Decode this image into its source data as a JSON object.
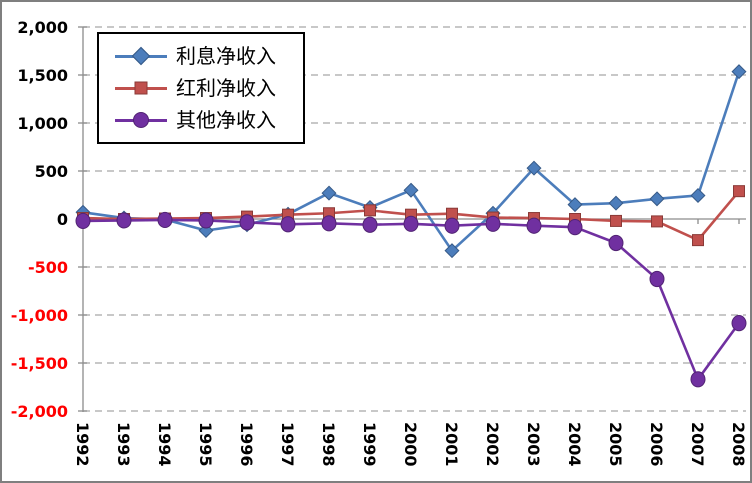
{
  "chart_data": {
    "type": "line",
    "title": "",
    "xlabel": "",
    "ylabel": "",
    "categories": [
      "1992",
      "1993",
      "1994",
      "1995",
      "1996",
      "1997",
      "1998",
      "1999",
      "2000",
      "2001",
      "2002",
      "2003",
      "2004",
      "2005",
      "2006",
      "2007",
      "2008"
    ],
    "series": [
      {
        "name": "利息净收入",
        "marker": "diamond",
        "color": "#4C7DBB",
        "values": [
          70,
          10,
          -5,
          -120,
          -60,
          50,
          270,
          120,
          300,
          -330,
          60,
          530,
          150,
          165,
          210,
          245,
          1535
        ]
      },
      {
        "name": "红利净收入",
        "marker": "square",
        "color": "#C0504D",
        "values": [
          10,
          0,
          5,
          10,
          25,
          45,
          60,
          90,
          45,
          55,
          15,
          10,
          0,
          -20,
          -25,
          -220,
          290
        ]
      },
      {
        "name": "其他净收入",
        "marker": "circle",
        "color": "#7030A0",
        "values": [
          -20,
          -15,
          -10,
          -15,
          -35,
          -55,
          -45,
          -60,
          -50,
          -70,
          -50,
          -70,
          -85,
          -250,
          -625,
          -1670,
          -1085
        ]
      }
    ],
    "ylim": [
      -2000,
      2000
    ],
    "ytick_interval": 500,
    "yticks": [
      {
        "value": 2000,
        "label": "2,000"
      },
      {
        "value": 1500,
        "label": "1,500"
      },
      {
        "value": 1000,
        "label": "1,000"
      },
      {
        "value": 500,
        "label": "500"
      },
      {
        "value": 0,
        "label": "0"
      },
      {
        "value": -500,
        "label": "-500"
      },
      {
        "value": -1000,
        "label": "-1,000"
      },
      {
        "value": -1500,
        "label": "-1,500"
      },
      {
        "value": -2000,
        "label": "-2,000"
      }
    ],
    "grid": "dashed horizontal",
    "legend_position": "top-left inside",
    "x_label_rotation_deg": 90,
    "colors": {
      "grid": "#A6A6A6",
      "axis": "#8C8C8C",
      "tick_label_positive": "#000000",
      "tick_label_negative": "#FF0000",
      "chart_border": "#7F7F7F",
      "background": "#FFFFFF",
      "legend_border": "#000000"
    }
  }
}
